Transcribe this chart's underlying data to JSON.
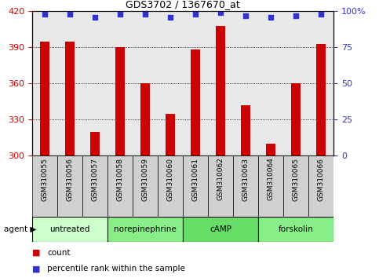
{
  "title": "GDS3702 / 1367670_at",
  "samples": [
    "GSM310055",
    "GSM310056",
    "GSM310057",
    "GSM310058",
    "GSM310059",
    "GSM310060",
    "GSM310061",
    "GSM310062",
    "GSM310063",
    "GSM310064",
    "GSM310065",
    "GSM310066"
  ],
  "counts": [
    395,
    395,
    320,
    390,
    360,
    335,
    388,
    408,
    342,
    310,
    360,
    393
  ],
  "percentiles": [
    98,
    98,
    96,
    98,
    98,
    96,
    98,
    99,
    97,
    96,
    97,
    98
  ],
  "ylim_left": [
    300,
    420
  ],
  "ylim_right": [
    0,
    100
  ],
  "yticks_left": [
    300,
    330,
    360,
    390,
    420
  ],
  "yticks_right": [
    0,
    25,
    50,
    75,
    100
  ],
  "ytick_right_labels": [
    "0",
    "25",
    "50",
    "75",
    "100%"
  ],
  "bar_color": "#cc0000",
  "dot_color": "#3333cc",
  "bar_width": 0.4,
  "agent_groups": [
    {
      "label": "untreated",
      "start": 0,
      "end": 3,
      "color": "#ccffcc"
    },
    {
      "label": "norepinephrine",
      "start": 3,
      "end": 6,
      "color": "#88ee88"
    },
    {
      "label": "cAMP",
      "start": 6,
      "end": 9,
      "color": "#66dd66"
    },
    {
      "label": "forskolin",
      "start": 9,
      "end": 12,
      "color": "#88ee88"
    }
  ],
  "legend_count_color": "#cc0000",
  "legend_dot_color": "#3333cc",
  "tick_label_color_left": "#cc0000",
  "tick_label_color_right": "#3333cc",
  "bg_plot": "#e8e8e8",
  "bg_xtick": "#d0d0d0",
  "grid_lines": [
    330,
    360,
    390
  ]
}
